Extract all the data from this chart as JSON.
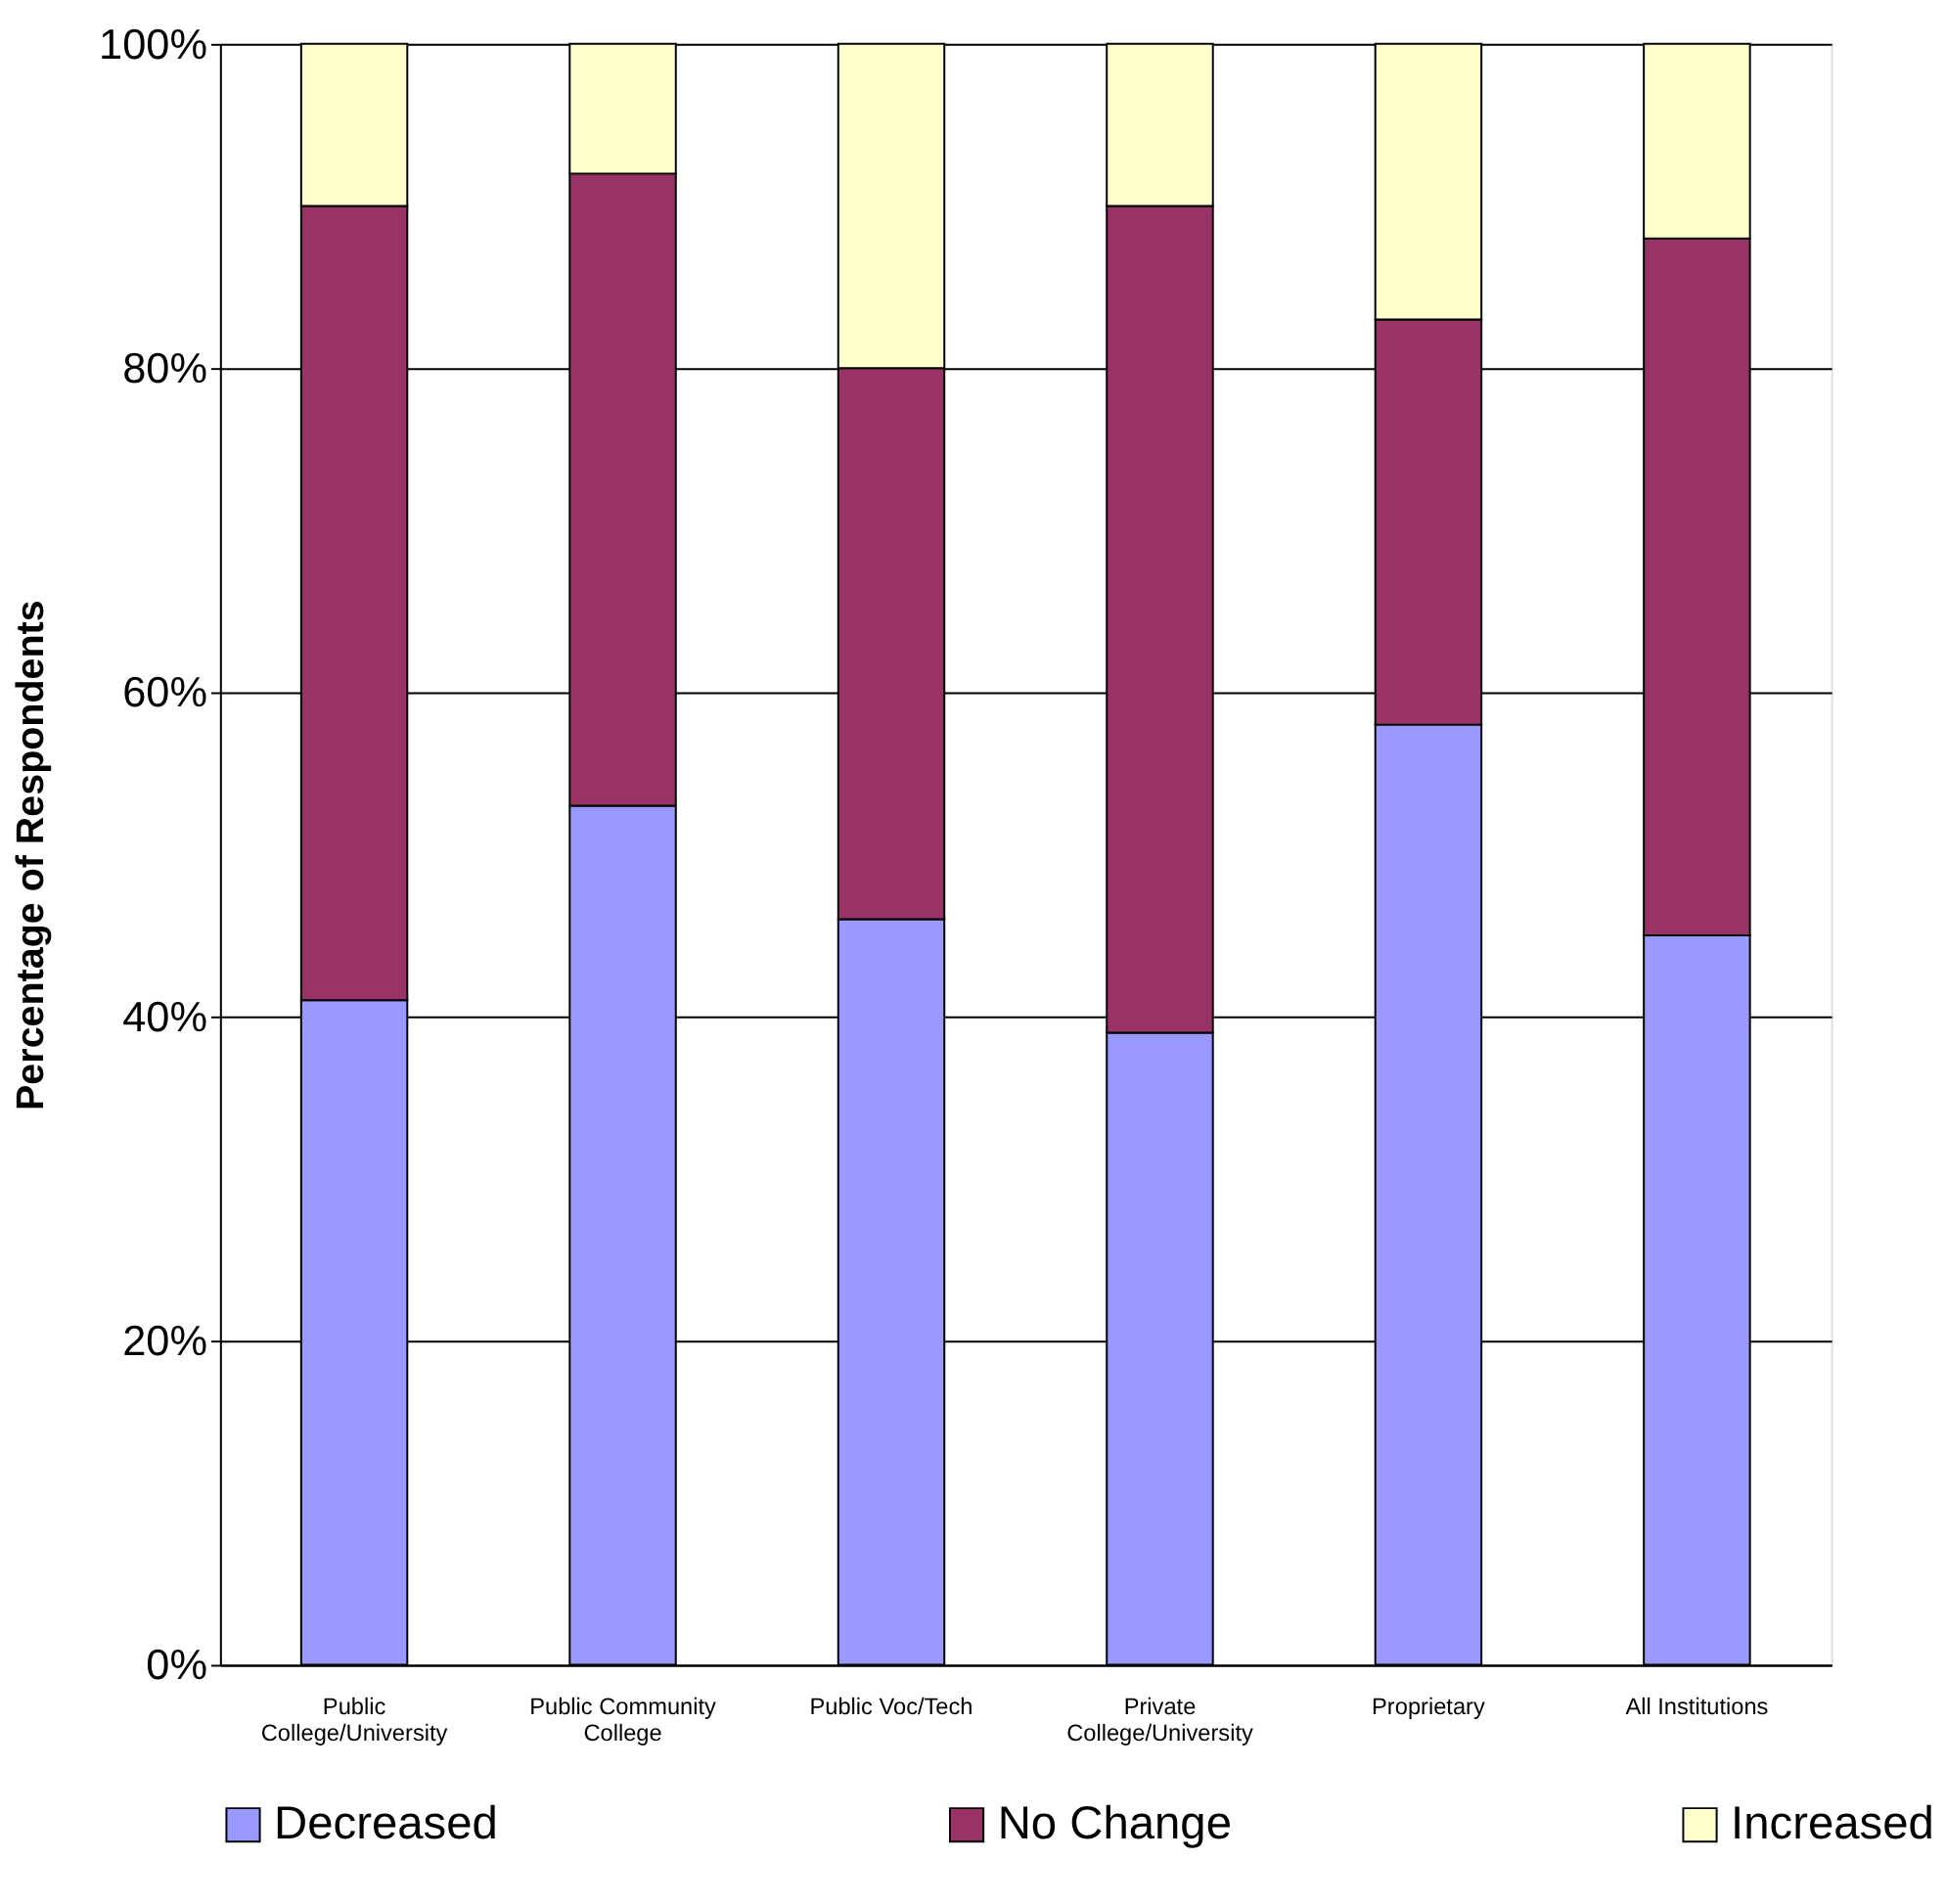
{
  "chart_data": {
    "type": "bar",
    "stacked": true,
    "ylabel": "Percentage of Respondents",
    "categories": [
      "Public College/University",
      "Public Community College",
      "Public Voc/Tech",
      "Private College/University",
      "Proprietary",
      "All Institutions"
    ],
    "series": [
      {
        "name": "Decreased",
        "color": "#9999ff",
        "values": [
          41,
          53,
          46,
          39,
          58,
          45
        ]
      },
      {
        "name": "No Change",
        "color": "#993366",
        "values": [
          49,
          39,
          34,
          51,
          25,
          43
        ]
      },
      {
        "name": "Increased",
        "color": "#ffffcc",
        "values": [
          10,
          8,
          20,
          10,
          17,
          12
        ]
      }
    ],
    "ylim": [
      0,
      100
    ],
    "yticks": [
      {
        "value": 0,
        "label": "0%"
      },
      {
        "value": 20,
        "label": "20%"
      },
      {
        "value": 40,
        "label": "40%"
      },
      {
        "value": 60,
        "label": "60%"
      },
      {
        "value": 80,
        "label": "80%"
      },
      {
        "value": 100,
        "label": "100%"
      }
    ],
    "grid": "y",
    "legend": "bottom"
  }
}
